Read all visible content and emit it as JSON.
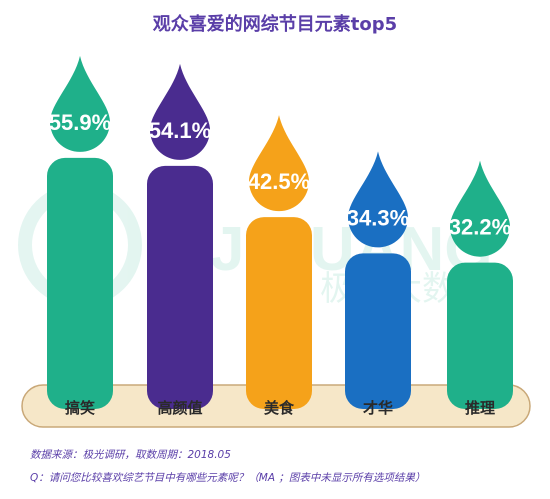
{
  "chart_data": {
    "type": "bar",
    "title": "观众喜爱的网综节目元素top5",
    "categories": [
      "搞笑",
      "高颜值",
      "美食",
      "才华",
      "推理"
    ],
    "values": [
      55.9,
      54.1,
      42.5,
      34.3,
      32.2
    ],
    "value_labels": [
      "55.9%",
      "54.1%",
      "42.5%",
      "34.3%",
      "32.2%"
    ],
    "colors": [
      "#1fb08a",
      "#4a2c8f",
      "#f5a21a",
      "#1a6fc2",
      "#1fb08a"
    ],
    "ylim": [
      0,
      60
    ],
    "grid": false
  },
  "watermark": {
    "brand": "JIGUANG",
    "cn": "极光大数据"
  },
  "footer": {
    "source": "数据来源：极光调研，取数周期：2018.05",
    "question": "Q：请问您比较喜欢综艺节目中有哪些元素呢？（MA ；图表中未显示所有选项结果）"
  }
}
